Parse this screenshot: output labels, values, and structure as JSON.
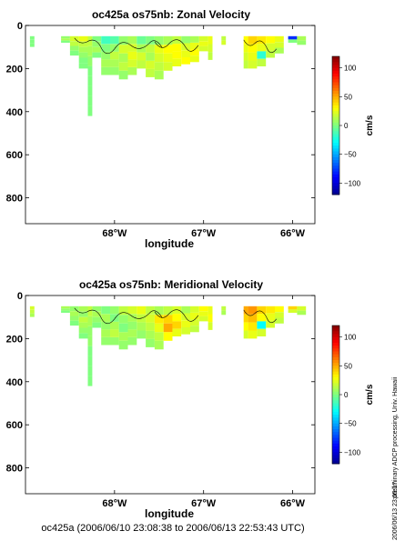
{
  "footer": "oc425a (2006/06/10 23:08:38 to 2006/06/13 22:53:43 UTC)",
  "side_text": {
    "processing": "preliminary ADCP processing,  Univ. Hawaii",
    "stamp": "2006/06/13 23:05:17"
  },
  "colors": {
    "background": "#ffffff",
    "axis": "#000000",
    "contour": "#000000",
    "colormap": [
      "#00008f",
      "#0000ff",
      "#0080ff",
      "#00ffff",
      "#80ff80",
      "#ffff00",
      "#ff8000",
      "#ff0000",
      "#800000"
    ]
  },
  "chart_data": [
    {
      "type": "heatmap",
      "title": "oc425a os75nb: Zonal Velocity",
      "xlabel": "longitude",
      "ylabel": "",
      "xlim": [
        -69.0,
        -65.75
      ],
      "ylim": [
        920,
        0
      ],
      "xticks": [
        -68,
        -67,
        -66
      ],
      "xtick_labels": [
        "68°W",
        "67°W",
        "66°W"
      ],
      "yticks": [
        0,
        200,
        400,
        600,
        800
      ],
      "ytick_labels": [
        "0",
        "200",
        "400",
        "600",
        "800"
      ],
      "colorbar": {
        "label": "cm/s",
        "range": [
          -120,
          120
        ],
        "ticks": [
          100,
          50,
          0,
          -50,
          -100
        ],
        "tick_labels": [
          "100",
          "50",
          "0",
          "−50",
          "−100"
        ]
      },
      "grid": false,
      "columns": [
        {
          "x0": -68.95,
          "x1": -68.9,
          "depth": 100,
          "values": [
            0,
            0,
            0
          ]
        },
        {
          "x0": -68.6,
          "x1": -68.5,
          "depth": 80,
          "values": [
            5,
            10,
            0
          ]
        },
        {
          "x0": -68.5,
          "x1": -68.4,
          "depth": 140,
          "values": [
            20,
            15,
            5,
            0
          ]
        },
        {
          "x0": -68.4,
          "x1": -68.3,
          "depth": 200,
          "values": [
            25,
            15,
            10,
            5,
            0,
            0
          ]
        },
        {
          "x0": -68.3,
          "x1": -68.25,
          "depth": 420,
          "values": [
            15,
            10,
            5,
            0,
            0,
            0,
            0,
            0
          ]
        },
        {
          "x0": -68.25,
          "x1": -68.15,
          "depth": 150,
          "values": [
            0,
            5,
            10,
            0
          ]
        },
        {
          "x0": -68.15,
          "x1": -68.05,
          "depth": 230,
          "values": [
            -15,
            0,
            5,
            10,
            5
          ]
        },
        {
          "x0": -68.05,
          "x1": -67.95,
          "depth": 230,
          "values": [
            -10,
            5,
            15,
            10,
            5
          ]
        },
        {
          "x0": -67.95,
          "x1": -67.85,
          "depth": 250,
          "values": [
            5,
            20,
            10,
            15,
            5
          ]
        },
        {
          "x0": -67.85,
          "x1": -67.75,
          "depth": 230,
          "values": [
            10,
            20,
            25,
            20,
            10
          ]
        },
        {
          "x0": -67.75,
          "x1": -67.65,
          "depth": 200,
          "values": [
            -5,
            10,
            20,
            15
          ]
        },
        {
          "x0": -67.65,
          "x1": -67.55,
          "depth": 240,
          "values": [
            0,
            15,
            10,
            20,
            15
          ]
        },
        {
          "x0": -67.55,
          "x1": -67.45,
          "depth": 250,
          "values": [
            5,
            25,
            20,
            15,
            10
          ]
        },
        {
          "x0": -67.45,
          "x1": -67.35,
          "depth": 210,
          "values": [
            10,
            30,
            25,
            20
          ]
        },
        {
          "x0": -67.35,
          "x1": -67.25,
          "depth": 190,
          "values": [
            15,
            30,
            30,
            25
          ]
        },
        {
          "x0": -67.25,
          "x1": -67.15,
          "depth": 180,
          "values": [
            5,
            20,
            25,
            30
          ]
        },
        {
          "x0": -67.15,
          "x1": -67.05,
          "depth": 170,
          "values": [
            10,
            25,
            30,
            25
          ]
        },
        {
          "x0": -67.05,
          "x1": -66.95,
          "depth": 120,
          "values": [
            20,
            25,
            20
          ]
        },
        {
          "x0": -66.95,
          "x1": -66.9,
          "depth": 160,
          "values": [
            25,
            20,
            15
          ]
        },
        {
          "x0": -66.8,
          "x1": -66.75,
          "depth": 90,
          "values": [
            15,
            20
          ]
        },
        {
          "x0": -66.55,
          "x1": -66.5,
          "depth": 200,
          "values": [
            30,
            25,
            20,
            15
          ]
        },
        {
          "x0": -66.5,
          "x1": -66.4,
          "depth": 200,
          "values": [
            40,
            30,
            25,
            20
          ]
        },
        {
          "x0": -66.4,
          "x1": -66.3,
          "depth": 190,
          "values": [
            35,
            25,
            -20,
            15
          ]
        },
        {
          "x0": -66.3,
          "x1": -66.2,
          "depth": 150,
          "values": [
            30,
            20,
            15
          ]
        },
        {
          "x0": -66.2,
          "x1": -66.1,
          "depth": 130,
          "values": [
            25,
            20,
            10
          ]
        },
        {
          "x0": -66.05,
          "x1": -65.95,
          "depth": 80,
          "values": [
            -80,
            0
          ]
        },
        {
          "x0": -65.95,
          "x1": -65.85,
          "depth": 90,
          "values": [
            10,
            5
          ]
        }
      ]
    },
    {
      "type": "heatmap",
      "title": "oc425a os75nb: Meridional Velocity",
      "xlabel": "longitude",
      "ylabel": "",
      "xlim": [
        -69.0,
        -65.75
      ],
      "ylim": [
        920,
        0
      ],
      "xticks": [
        -68,
        -67,
        -66
      ],
      "xtick_labels": [
        "68°W",
        "67°W",
        "66°W"
      ],
      "yticks": [
        0,
        200,
        400,
        600,
        800
      ],
      "ytick_labels": [
        "0",
        "200",
        "400",
        "600",
        "800"
      ],
      "colorbar": {
        "label": "cm/s",
        "range": [
          -120,
          120
        ],
        "ticks": [
          100,
          50,
          0,
          -50,
          -100
        ],
        "tick_labels": [
          "100",
          "50",
          "0",
          "−50",
          "−100"
        ]
      },
      "grid": false,
      "columns": [
        {
          "x0": -68.95,
          "x1": -68.9,
          "depth": 100,
          "values": [
            20,
            15,
            10
          ]
        },
        {
          "x0": -68.6,
          "x1": -68.5,
          "depth": 80,
          "values": [
            10,
            5,
            0
          ]
        },
        {
          "x0": -68.5,
          "x1": -68.4,
          "depth": 140,
          "values": [
            5,
            10,
            5,
            0
          ]
        },
        {
          "x0": -68.4,
          "x1": -68.3,
          "depth": 200,
          "values": [
            10,
            5,
            15,
            10,
            5,
            0
          ]
        },
        {
          "x0": -68.3,
          "x1": -68.25,
          "depth": 420,
          "values": [
            15,
            10,
            5,
            5,
            0,
            0,
            0,
            0
          ]
        },
        {
          "x0": -68.25,
          "x1": -68.15,
          "depth": 150,
          "values": [
            5,
            10,
            5,
            0
          ]
        },
        {
          "x0": -68.15,
          "x1": -68.05,
          "depth": 230,
          "values": [
            0,
            10,
            5,
            10,
            5
          ]
        },
        {
          "x0": -68.05,
          "x1": -67.95,
          "depth": 230,
          "values": [
            5,
            0,
            10,
            15,
            5
          ]
        },
        {
          "x0": -67.95,
          "x1": -67.85,
          "depth": 250,
          "values": [
            15,
            5,
            0,
            10,
            5
          ]
        },
        {
          "x0": -67.85,
          "x1": -67.75,
          "depth": 230,
          "values": [
            20,
            10,
            5,
            10,
            5
          ]
        },
        {
          "x0": -67.75,
          "x1": -67.65,
          "depth": 200,
          "values": [
            25,
            15,
            10,
            5
          ]
        },
        {
          "x0": -67.65,
          "x1": -67.55,
          "depth": 240,
          "values": [
            15,
            20,
            15,
            10,
            5
          ]
        },
        {
          "x0": -67.55,
          "x1": -67.45,
          "depth": 250,
          "values": [
            10,
            35,
            25,
            15,
            10
          ]
        },
        {
          "x0": -67.45,
          "x1": -67.35,
          "depth": 210,
          "values": [
            15,
            40,
            50,
            30
          ]
        },
        {
          "x0": -67.35,
          "x1": -67.25,
          "depth": 190,
          "values": [
            20,
            30,
            40,
            25
          ]
        },
        {
          "x0": -67.25,
          "x1": -67.15,
          "depth": 180,
          "values": [
            10,
            20,
            25,
            20
          ]
        },
        {
          "x0": -67.15,
          "x1": -67.05,
          "depth": 170,
          "values": [
            20,
            25,
            20,
            15
          ]
        },
        {
          "x0": -67.05,
          "x1": -66.95,
          "depth": 120,
          "values": [
            30,
            25,
            20
          ]
        },
        {
          "x0": -66.95,
          "x1": -66.9,
          "depth": 160,
          "values": [
            25,
            30,
            20
          ]
        },
        {
          "x0": -66.8,
          "x1": -66.75,
          "depth": 90,
          "values": [
            15,
            10
          ]
        },
        {
          "x0": -66.55,
          "x1": -66.5,
          "depth": 200,
          "values": [
            50,
            40,
            30,
            20
          ]
        },
        {
          "x0": -66.5,
          "x1": -66.4,
          "depth": 200,
          "values": [
            55,
            45,
            35,
            25
          ]
        },
        {
          "x0": -66.4,
          "x1": -66.3,
          "depth": 190,
          "values": [
            40,
            30,
            -30,
            20
          ]
        },
        {
          "x0": -66.3,
          "x1": -66.2,
          "depth": 150,
          "values": [
            35,
            25,
            20
          ]
        },
        {
          "x0": -66.2,
          "x1": -66.1,
          "depth": 130,
          "values": [
            30,
            20,
            15
          ]
        },
        {
          "x0": -66.05,
          "x1": -65.95,
          "depth": 80,
          "values": [
            40,
            20
          ]
        },
        {
          "x0": -65.95,
          "x1": -65.85,
          "depth": 90,
          "values": [
            20,
            10
          ]
        }
      ]
    }
  ]
}
